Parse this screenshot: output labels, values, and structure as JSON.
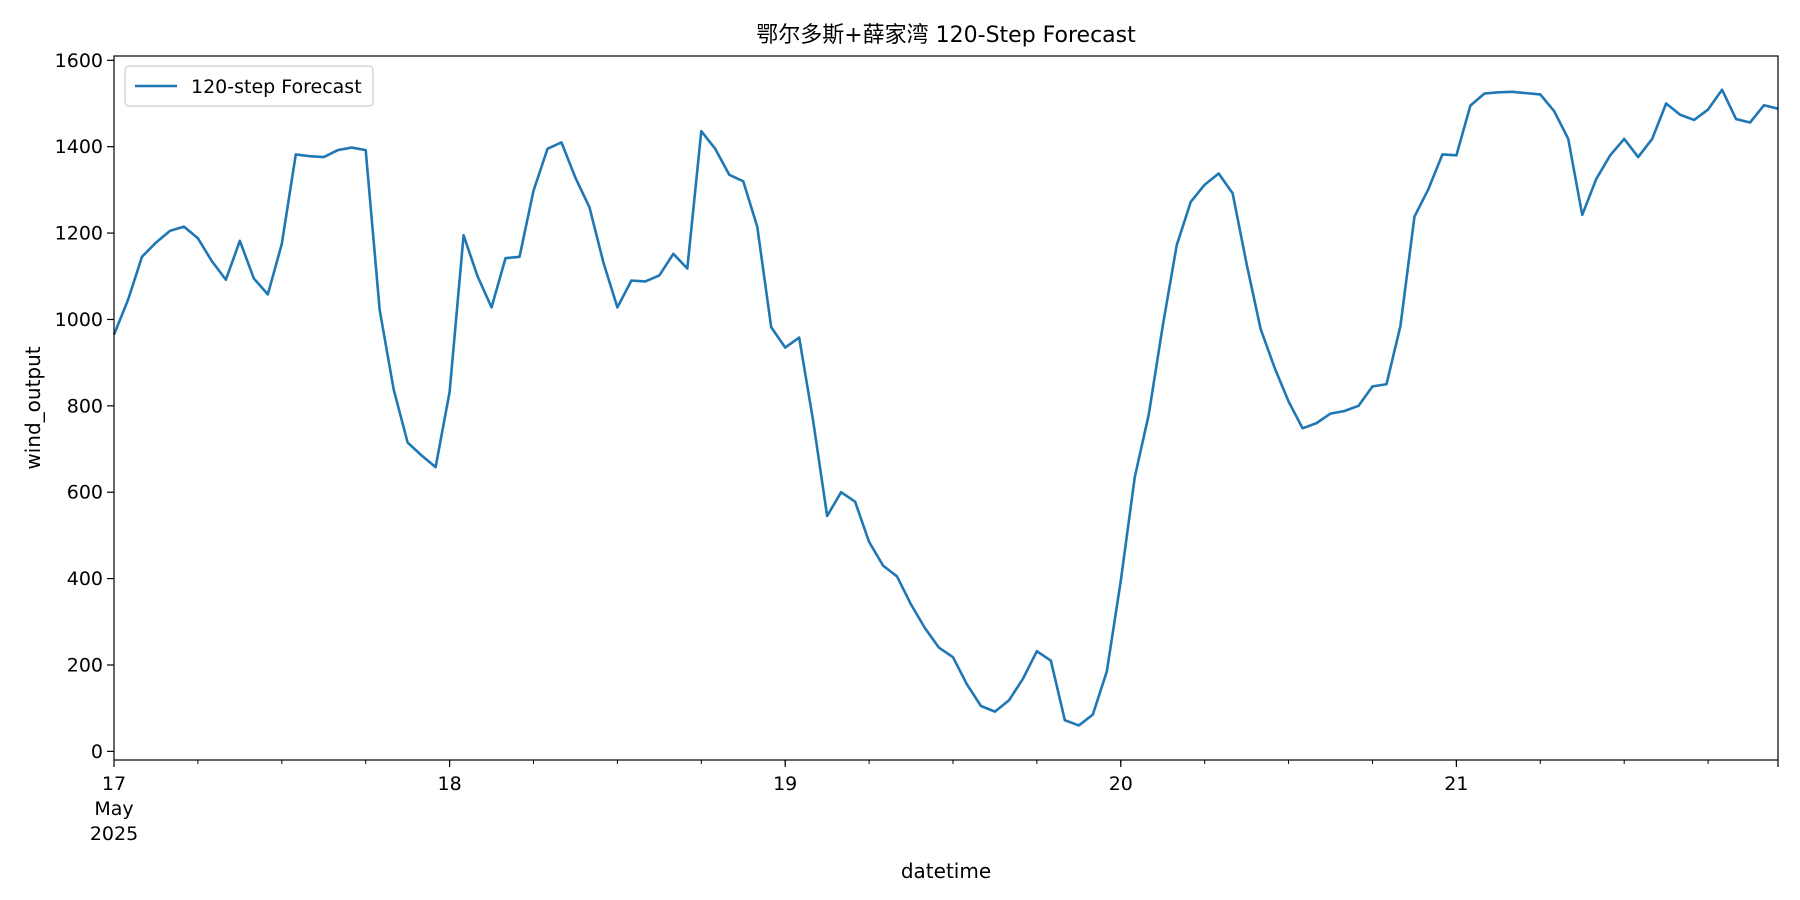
{
  "chart_data": {
    "type": "line",
    "title": "鄂尔多斯+薛家湾 120-Step Forecast",
    "xlabel": "datetime",
    "ylabel": "wind_output",
    "xlim": [
      "2025-05-17 00:00",
      "2025-05-21 23:00"
    ],
    "ylim": [
      -20,
      1610
    ],
    "grid": false,
    "legend_position": "top-left",
    "x_tick_labels": [
      {
        "value": "2025-05-17 00:00",
        "lines": [
          "17",
          "May",
          "2025"
        ]
      },
      {
        "value": "2025-05-18 00:00",
        "lines": [
          "18"
        ]
      },
      {
        "value": "2025-05-19 00:00",
        "lines": [
          "19"
        ]
      },
      {
        "value": "2025-05-20 00:00",
        "lines": [
          "20"
        ]
      },
      {
        "value": "2025-05-21 00:00",
        "lines": [
          "21"
        ]
      }
    ],
    "y_ticks": [
      0,
      200,
      400,
      600,
      800,
      1000,
      1200,
      1400,
      1600
    ],
    "x_start": "2025-05-17 00:00",
    "x_step": "1 hour",
    "series": [
      {
        "name": "120-step Forecast",
        "color": "#1f77b4",
        "values": [
          965,
          1045,
          1145,
          1178,
          1205,
          1215,
          1188,
          1135,
          1092,
          1182,
          1095,
          1058,
          1175,
          1382,
          1378,
          1376,
          1392,
          1398,
          1392,
          1022,
          838,
          715,
          685,
          658,
          832,
          1195,
          1100,
          1028,
          1142,
          1145,
          1298,
          1395,
          1410,
          1328,
          1260,
          1132,
          1028,
          1090,
          1088,
          1102,
          1152,
          1118,
          1436,
          1395,
          1335,
          1320,
          1215,
          982,
          935,
          958,
          765,
          545,
          600,
          578,
          485,
          430,
          405,
          340,
          285,
          240,
          218,
          155,
          105,
          92,
          118,
          168,
          232,
          210,
          72,
          60,
          85,
          185,
          395,
          635,
          780,
          985,
          1172,
          1272,
          1312,
          1338,
          1292,
          1128,
          978,
          888,
          810,
          748,
          760,
          782,
          788,
          800,
          845,
          850,
          985,
          1238,
          1302,
          1382,
          1380,
          1495,
          1523,
          1526,
          1527,
          1524,
          1521,
          1482,
          1418,
          1242,
          1325,
          1380,
          1418,
          1376,
          1418,
          1500,
          1474,
          1462,
          1486,
          1532,
          1464,
          1456,
          1496,
          1488
        ]
      }
    ]
  }
}
